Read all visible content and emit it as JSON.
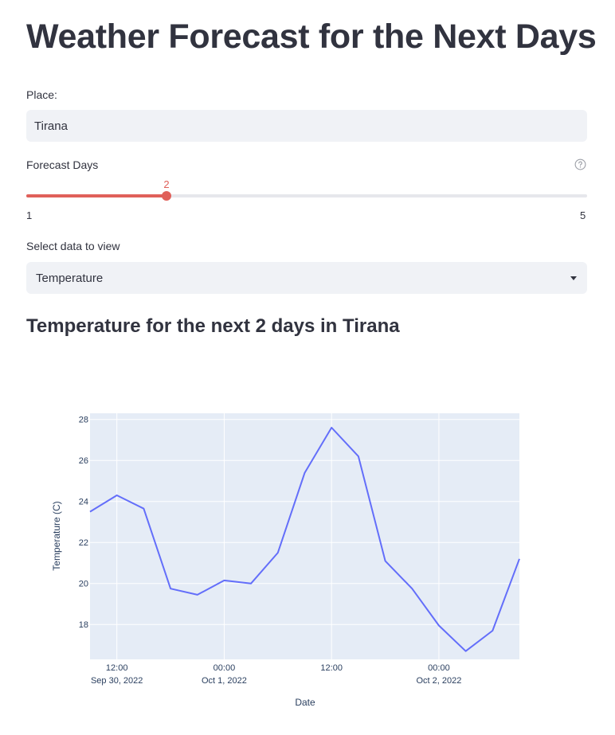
{
  "header": {
    "title": "Weather Forecast for the Next Days"
  },
  "place": {
    "label": "Place:",
    "value": "Tirana"
  },
  "forecast_days": {
    "label": "Forecast Days",
    "min": 1,
    "max": 5,
    "value": 2,
    "value_label": "2",
    "min_label": "1",
    "max_label": "5",
    "accent": "#e0605a"
  },
  "view": {
    "label": "Select data to view",
    "selected": "Temperature"
  },
  "section": {
    "title": "Temperature for the next 2 days in Tirana"
  },
  "chart_data": {
    "type": "line",
    "title": "",
    "xlabel": "Date",
    "ylabel": "Temperature (C)",
    "x": [
      "2022-09-30 09:00",
      "2022-09-30 12:00",
      "2022-09-30 15:00",
      "2022-09-30 18:00",
      "2022-09-30 21:00",
      "2022-10-01 00:00",
      "2022-10-01 03:00",
      "2022-10-01 06:00",
      "2022-10-01 09:00",
      "2022-10-01 12:00",
      "2022-10-01 15:00",
      "2022-10-01 18:00",
      "2022-10-01 21:00",
      "2022-10-02 00:00",
      "2022-10-02 03:00",
      "2022-10-02 06:00",
      "2022-10-02 09:00"
    ],
    "series": [
      {
        "values": [
          23.5,
          24.3,
          23.65,
          19.75,
          19.45,
          20.15,
          20.0,
          21.5,
          25.4,
          27.6,
          26.2,
          21.1,
          19.75,
          17.95,
          16.7,
          17.7,
          21.2
        ],
        "color": "#636efa"
      }
    ],
    "xlim": [
      "2022-09-30 09:00",
      "2022-10-02 09:00"
    ],
    "ylim": [
      16.3,
      28.3
    ],
    "y_ticks": [
      18,
      20,
      22,
      24,
      26,
      28
    ],
    "y_tick_labels": [
      "18",
      "20",
      "22",
      "24",
      "26",
      "28"
    ],
    "x_ticks": [
      "2022-09-30 12:00",
      "2022-10-01 00:00",
      "2022-10-01 12:00",
      "2022-10-02 00:00"
    ],
    "x_tick_labels": [
      {
        "time": "12:00",
        "date": "Sep 30, 2022"
      },
      {
        "time": "00:00",
        "date": "Oct 1, 2022"
      },
      {
        "time": "12:00",
        "date": ""
      },
      {
        "time": "00:00",
        "date": "Oct 2, 2022"
      }
    ],
    "grid": true,
    "plot_bgcolor": "#e5ecf6"
  }
}
